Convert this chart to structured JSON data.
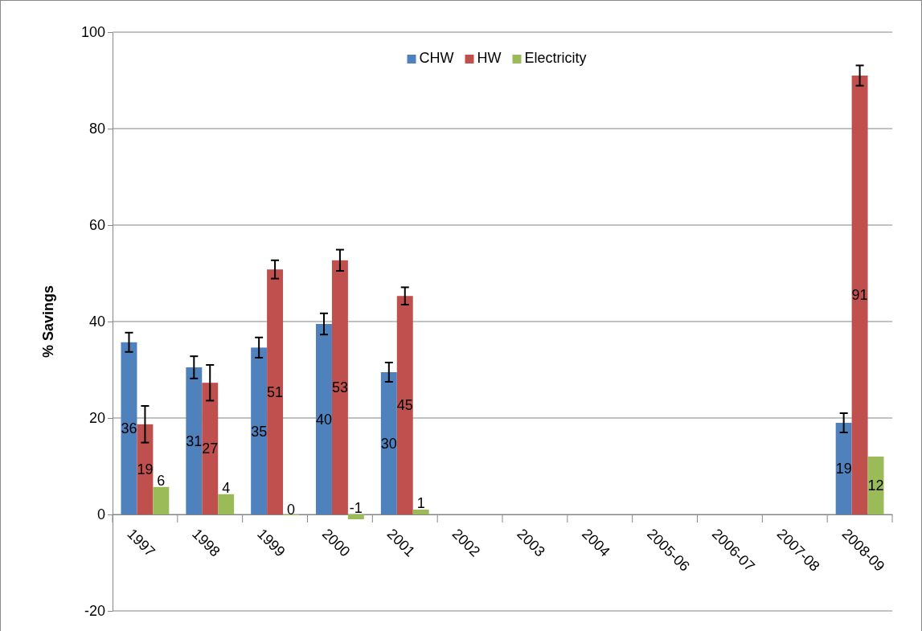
{
  "chart_data": {
    "type": "bar",
    "ylabel": "% Savings",
    "categories": [
      "1997",
      "1998",
      "1999",
      "2000",
      "2001",
      "2002",
      "2003",
      "2004",
      "2005-06",
      "2006-07",
      "2007-08",
      "2008-09"
    ],
    "series": [
      {
        "name": "CHW",
        "color": "#4f81bd",
        "values": [
          35.7,
          30.5,
          34.6,
          39.5,
          29.5,
          null,
          null,
          null,
          null,
          null,
          null,
          19.0
        ],
        "errors": [
          2,
          2.3,
          2.1,
          2.2,
          2,
          null,
          null,
          null,
          null,
          null,
          null,
          2
        ],
        "value_labels": [
          "36",
          "31",
          "35",
          "40",
          "30",
          null,
          null,
          null,
          null,
          null,
          null,
          "19"
        ]
      },
      {
        "name": "HW",
        "color": "#c0504d",
        "values": [
          18.7,
          27.3,
          50.8,
          52.7,
          45.3,
          null,
          null,
          null,
          null,
          null,
          null,
          91.0
        ],
        "errors": [
          3.8,
          3.7,
          1.9,
          2.2,
          1.8,
          null,
          null,
          null,
          null,
          null,
          null,
          2.1
        ],
        "value_labels": [
          "19",
          "27",
          "51",
          "53",
          "45",
          null,
          null,
          null,
          null,
          null,
          null,
          "91"
        ]
      },
      {
        "name": "Electricity",
        "color": "#9bbb59",
        "values": [
          5.7,
          4.2,
          0,
          -1,
          1,
          null,
          null,
          null,
          null,
          null,
          null,
          12
        ],
        "value_labels": [
          "6",
          "4",
          "0",
          "-1",
          "1",
          null,
          null,
          null,
          null,
          null,
          null,
          "12"
        ]
      }
    ],
    "ylim": [
      -20,
      100
    ],
    "yticks": [
      -20,
      0,
      20,
      40,
      60,
      80,
      100
    ],
    "grid": "y",
    "legend": "top"
  }
}
